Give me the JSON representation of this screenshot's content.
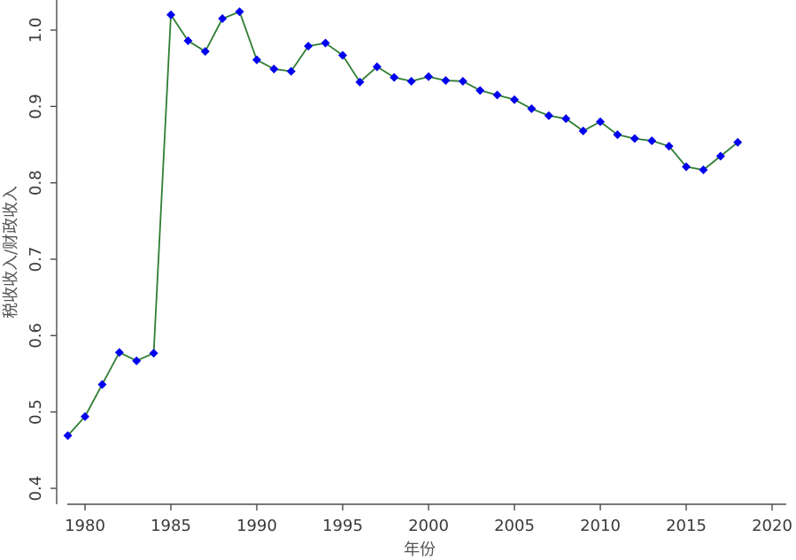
{
  "chart_data": {
    "type": "line",
    "title": "",
    "xlabel": "年份",
    "ylabel": "税收收入/财政收入",
    "xlim": [
      1979,
      2020
    ],
    "ylim": [
      0.4,
      1.02
    ],
    "xticks": [
      1980,
      1985,
      1990,
      1995,
      2000,
      2005,
      2010,
      2015,
      2020
    ],
    "yticks": [
      0.4,
      0.5,
      0.6,
      0.7,
      0.8,
      0.9,
      1.0
    ],
    "xtick_labels": [
      "1980",
      "1985",
      "1990",
      "1995",
      "2000",
      "2005",
      "2010",
      "2015",
      "2020"
    ],
    "ytick_labels": [
      "0.4",
      "0.5",
      "0.6",
      "0.7",
      "0.8",
      "0.9",
      "1.0"
    ],
    "grid": false,
    "colors": {
      "line": "#2e7d32",
      "marker": "#0000ee",
      "axis": "#4a4a4a"
    },
    "series": [
      {
        "x": [
          1979,
          1980,
          1981,
          1982,
          1983,
          1984,
          1985,
          1986,
          1987,
          1988,
          1989,
          1990,
          1991,
          1992,
          1993,
          1994,
          1995,
          1996,
          1997,
          1998,
          1999,
          2000,
          2001,
          2002,
          2003,
          2004,
          2005,
          2006,
          2007,
          2008,
          2009,
          2010,
          2011,
          2012,
          2013,
          2014,
          2015,
          2016,
          2017,
          2018
        ],
        "y": [
          0.469,
          0.494,
          0.536,
          0.578,
          0.567,
          0.577,
          1.02,
          0.986,
          0.972,
          1.015,
          1.024,
          0.961,
          0.949,
          0.946,
          0.979,
          0.983,
          0.967,
          0.932,
          0.952,
          0.938,
          0.933,
          0.939,
          0.934,
          0.933,
          0.921,
          0.915,
          0.909,
          0.897,
          0.888,
          0.884,
          0.868,
          0.88,
          0.863,
          0.858,
          0.855,
          0.848,
          0.821,
          0.817,
          0.835,
          0.853
        ],
        "marker": "diamond"
      }
    ]
  }
}
